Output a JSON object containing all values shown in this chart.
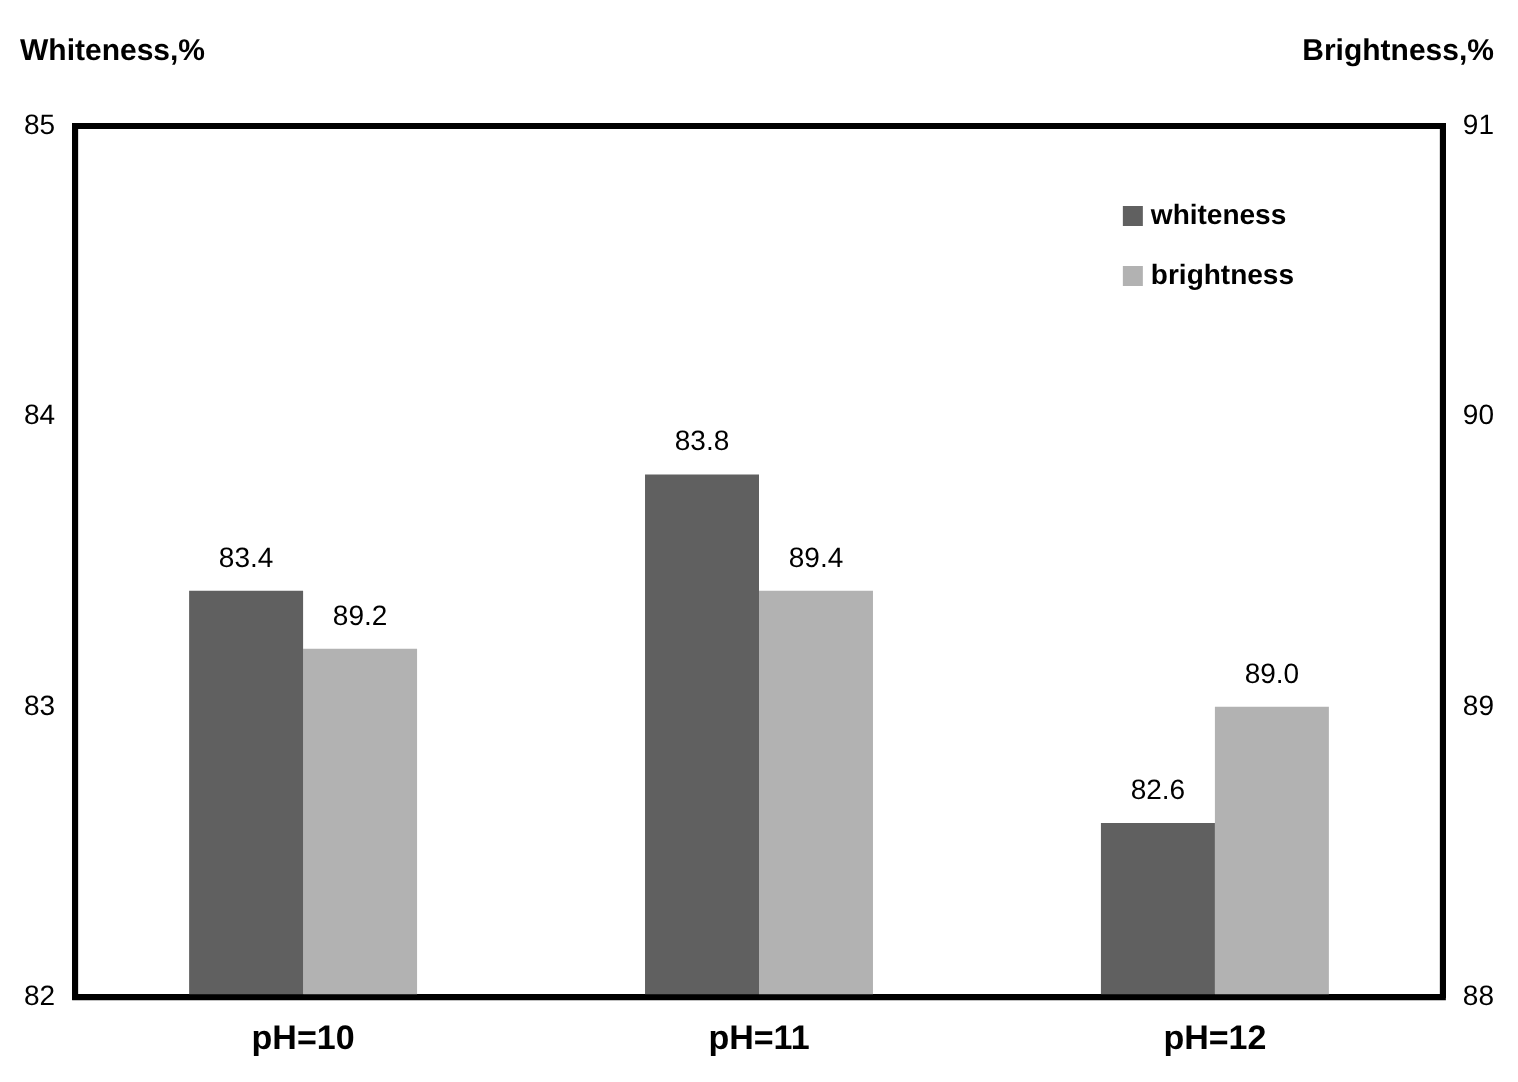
{
  "chart_data": {
    "type": "bar",
    "ylabel": "Whiteness,%",
    "y2label": "Brightness,%",
    "categories": [
      "pH=10",
      "pH=11",
      "pH=12"
    ],
    "series": [
      {
        "name": "whiteness",
        "color": "#606060",
        "values": [
          83.4,
          83.8,
          82.6
        ],
        "value_labels": [
          "83.4",
          "83.8",
          "82.6"
        ]
      },
      {
        "name": "brightness",
        "color": "#b2b2b2",
        "values": [
          89.2,
          89.4,
          89.0
        ],
        "value_labels": [
          "89.2",
          "89.4",
          "89.0"
        ],
        "axis": "y2"
      }
    ],
    "ylim": [
      82,
      85
    ],
    "yticks": [
      82,
      83,
      84,
      85
    ],
    "y2lim": [
      88,
      91
    ],
    "y2ticks": [
      88,
      89,
      90,
      91
    ],
    "grid": false,
    "legend": "top right"
  }
}
